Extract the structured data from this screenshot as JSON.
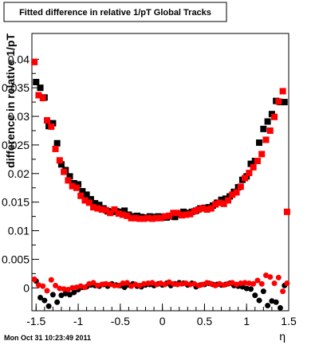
{
  "chart_data": {
    "type": "scatter",
    "title": "Fitted difference in relative 1/pT  Global Tracks",
    "xlabel": "η",
    "ylabel": "difference in relative 1/pT",
    "timestamp": "Mon Oct 31 10:23:49 2011",
    "xlim": [
      -1.55,
      1.5
    ],
    "ylim": [
      -0.004,
      0.0445
    ],
    "x_ticks": [
      -1.5,
      -1,
      -0.5,
      0,
      0.5,
      1,
      1.5
    ],
    "x_tick_labels": [
      "-1.5",
      "-1",
      "-0.5",
      "0",
      "0.5",
      "1",
      "1.5"
    ],
    "y_ticks": [
      0,
      0.005,
      0.01,
      0.015,
      0.02,
      0.025,
      0.03,
      0.035,
      0.04
    ],
    "y_tick_labels": [
      "0",
      "0.005",
      "0.01",
      "0.015",
      "0.02",
      "0.025",
      "0.03",
      "0.035",
      "0.04"
    ],
    "grid": false,
    "legend": "none",
    "series": [
      {
        "marker": "square",
        "color": "#000000",
        "x": [
          -1.5,
          -1.45,
          -1.4,
          -1.35,
          -1.3,
          -1.25,
          -1.2,
          -1.15,
          -1.1,
          -1.05,
          -1.0,
          -0.95,
          -0.9,
          -0.85,
          -0.8,
          -0.75,
          -0.7,
          -0.65,
          -0.6,
          -0.55,
          -0.5,
          -0.45,
          -0.4,
          -0.35,
          -0.3,
          -0.25,
          -0.2,
          -0.15,
          -0.1,
          -0.05,
          0.0,
          0.05,
          0.1,
          0.15,
          0.2,
          0.25,
          0.3,
          0.35,
          0.4,
          0.45,
          0.5,
          0.55,
          0.6,
          0.65,
          0.7,
          0.75,
          0.8,
          0.85,
          0.9,
          0.95,
          1.0,
          1.05,
          1.1,
          1.15,
          1.2,
          1.25,
          1.3,
          1.35,
          1.4,
          1.45
        ],
        "y": [
          0.036,
          0.035,
          0.0333,
          0.0283,
          0.0288,
          0.0253,
          0.0216,
          0.0206,
          0.0195,
          0.0183,
          0.0181,
          0.0169,
          0.0163,
          0.0155,
          0.0148,
          0.0145,
          0.0139,
          0.0134,
          0.0133,
          0.0134,
          0.0133,
          0.0135,
          0.0128,
          0.0125,
          0.0126,
          0.0124,
          0.0123,
          0.0125,
          0.0124,
          0.0125,
          0.0124,
          0.0123,
          0.0125,
          0.0124,
          0.0129,
          0.0133,
          0.0131,
          0.0133,
          0.0135,
          0.0139,
          0.014,
          0.0141,
          0.0144,
          0.0149,
          0.0154,
          0.0156,
          0.016,
          0.0168,
          0.0176,
          0.0189,
          0.0195,
          0.0217,
          0.0222,
          0.0254,
          0.0278,
          0.0291,
          0.0304,
          0.0327,
          0.0325,
          0.0325
        ]
      },
      {
        "marker": "square",
        "color": "#ff0000",
        "x": [
          -1.52,
          -1.47,
          -1.42,
          -1.37,
          -1.32,
          -1.27,
          -1.22,
          -1.17,
          -1.12,
          -1.07,
          -1.02,
          -0.97,
          -0.92,
          -0.87,
          -0.82,
          -0.77,
          -0.72,
          -0.67,
          -0.62,
          -0.57,
          -0.52,
          -0.47,
          -0.42,
          -0.37,
          -0.32,
          -0.27,
          -0.22,
          -0.17,
          -0.12,
          -0.07,
          -0.02,
          0.03,
          0.08,
          0.13,
          0.18,
          0.23,
          0.28,
          0.33,
          0.38,
          0.43,
          0.48,
          0.53,
          0.58,
          0.63,
          0.68,
          0.73,
          0.78,
          0.83,
          0.88,
          0.93,
          0.98,
          1.03,
          1.08,
          1.13,
          1.18,
          1.23,
          1.28,
          1.33,
          1.38,
          1.43,
          1.48
        ],
        "y": [
          0.0395,
          0.0337,
          0.0332,
          0.0293,
          0.0282,
          0.0243,
          0.0223,
          0.0203,
          0.0188,
          0.0178,
          0.0175,
          0.0161,
          0.0153,
          0.0149,
          0.0141,
          0.0139,
          0.0137,
          0.0136,
          0.0131,
          0.0137,
          0.013,
          0.0128,
          0.0126,
          0.0122,
          0.0122,
          0.0121,
          0.0121,
          0.0122,
          0.0121,
          0.0122,
          0.0122,
          0.0125,
          0.0126,
          0.0131,
          0.0131,
          0.0127,
          0.0128,
          0.0129,
          0.0134,
          0.0137,
          0.0139,
          0.0137,
          0.0139,
          0.0146,
          0.0149,
          0.0147,
          0.0153,
          0.0163,
          0.0167,
          0.0177,
          0.0192,
          0.0201,
          0.0211,
          0.0222,
          0.0234,
          0.0259,
          0.0275,
          0.0299,
          0.0326,
          0.0344,
          0.0133
        ]
      },
      {
        "marker": "circle",
        "color": "#000000",
        "x": [
          -1.5,
          -1.45,
          -1.4,
          -1.35,
          -1.3,
          -1.25,
          -1.2,
          -1.15,
          -1.1,
          -1.05,
          -1.0,
          -0.95,
          -0.9,
          -0.85,
          -0.8,
          -0.75,
          -0.7,
          -0.65,
          -0.6,
          -0.55,
          -0.5,
          -0.45,
          -0.4,
          -0.35,
          -0.3,
          -0.25,
          -0.2,
          -0.15,
          -0.1,
          -0.05,
          0.0,
          0.05,
          0.1,
          0.15,
          0.2,
          0.25,
          0.3,
          0.35,
          0.4,
          0.45,
          0.5,
          0.55,
          0.6,
          0.65,
          0.7,
          0.75,
          0.8,
          0.85,
          0.9,
          0.95,
          1.0,
          1.05,
          1.1,
          1.15,
          1.2,
          1.25,
          1.3,
          1.35,
          1.4,
          1.45
        ],
        "y": [
          0.0012,
          -0.0017,
          -0.0022,
          -0.0032,
          -0.0012,
          -0.0025,
          -0.0013,
          -0.001,
          -0.0012,
          -0.0008,
          -0.0003,
          0.0001,
          0.0002,
          0.0005,
          0.0004,
          0.0003,
          0.0006,
          0.0003,
          0.0007,
          0.0005,
          0.0004,
          0.0001,
          0.0005,
          0.0007,
          0.0003,
          0.0002,
          0.0005,
          0.0006,
          0.0004,
          0.0007,
          0.0005,
          0.0008,
          0.0004,
          0.0007,
          0.0009,
          0.0008,
          0.0005,
          0.0008,
          0.0002,
          0.0005,
          0.0006,
          0.0008,
          0.0006,
          0.0006,
          0.0005,
          0.0006,
          0.0008,
          0.0004,
          0.0003,
          0.0002,
          -0.0001,
          -0.0002,
          -0.0013,
          -0.0022,
          -0.0006,
          -0.0031,
          -0.0023,
          -0.0025,
          -0.0035,
          0.0004
        ]
      },
      {
        "marker": "circle",
        "color": "#ff0000",
        "x": [
          -1.52,
          -1.47,
          -1.42,
          -1.37,
          -1.32,
          -1.27,
          -1.22,
          -1.17,
          -1.12,
          -1.07,
          -1.02,
          -0.97,
          -0.92,
          -0.87,
          -0.82,
          -0.77,
          -0.72,
          -0.67,
          -0.62,
          -0.57,
          -0.52,
          -0.47,
          -0.42,
          -0.37,
          -0.32,
          -0.27,
          -0.22,
          -0.17,
          -0.12,
          -0.07,
          -0.02,
          0.03,
          0.08,
          0.13,
          0.18,
          0.23,
          0.28,
          0.33,
          0.38,
          0.43,
          0.48,
          0.53,
          0.58,
          0.63,
          0.68,
          0.73,
          0.78,
          0.83,
          0.88,
          0.93,
          0.98,
          1.03,
          1.08,
          1.13,
          1.18,
          1.23,
          1.28,
          1.33,
          1.38,
          1.43,
          1.48
        ],
        "y": [
          0.0015,
          0.0005,
          0.0003,
          -0.0005,
          0.0014,
          0.0004,
          -0.0001,
          -0.0002,
          -0.0003,
          0.0,
          0.0001,
          0.0003,
          0.0001,
          0.0007,
          0.0009,
          0.0004,
          0.0006,
          0.0007,
          0.0006,
          0.0004,
          0.0004,
          0.0008,
          0.0009,
          0.0003,
          0.0006,
          0.0004,
          0.0007,
          0.0008,
          0.0009,
          0.0006,
          0.0008,
          0.0006,
          0.001,
          0.0007,
          0.0006,
          0.0007,
          0.0008,
          0.0006,
          0.0007,
          0.0004,
          0.0006,
          0.0009,
          0.0007,
          0.0004,
          0.0007,
          0.0005,
          0.0007,
          0.0009,
          0.0006,
          0.0008,
          0.0009,
          0.0008,
          0.0007,
          0.0013,
          0.0007,
          0.0022,
          0.0019,
          0.0008,
          0.0018,
          -0.0006,
          0.0008
        ]
      }
    ]
  }
}
